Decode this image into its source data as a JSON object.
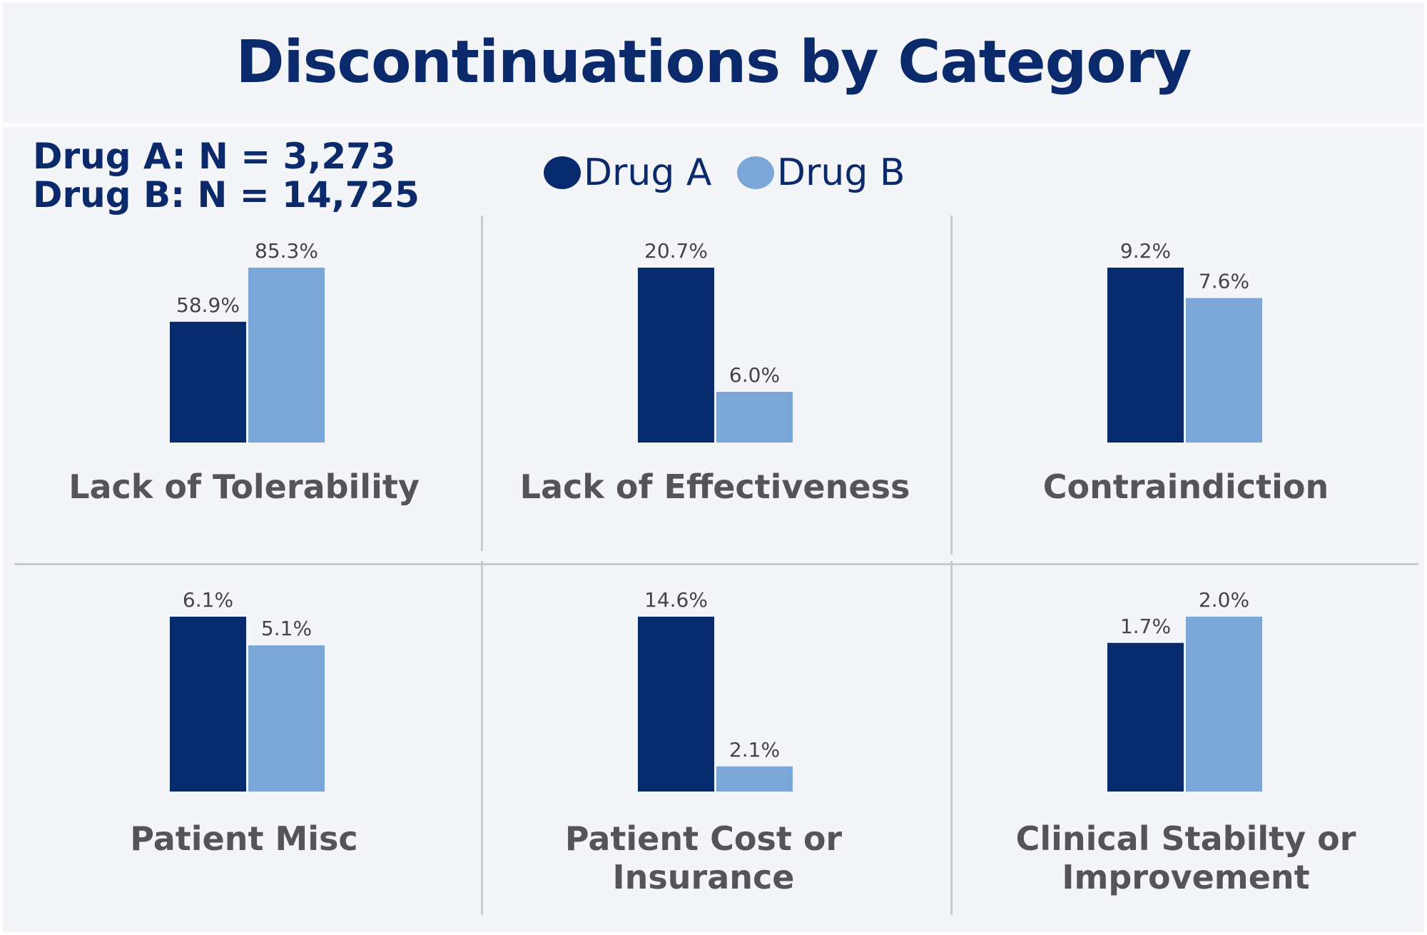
{
  "chart_data": {
    "type": "bar",
    "title": "Discontinuations by Category",
    "sample_sizes": [
      "Drug A: N = 3,273",
      "Drug B: N = 14,725"
    ],
    "series": [
      {
        "name": "Drug A",
        "color": "#062a6b"
      },
      {
        "name": "Drug B",
        "color": "#7ba7d8"
      }
    ],
    "panels": [
      {
        "category": [
          "Lack of Tolerability"
        ],
        "values": [
          58.9,
          85.3
        ],
        "labels": [
          "58.9%",
          "85.3%"
        ]
      },
      {
        "category": [
          "Lack of Effectiveness"
        ],
        "values": [
          20.7,
          6.0
        ],
        "labels": [
          "20.7%",
          "6.0%"
        ]
      },
      {
        "category": [
          "Contraindiction"
        ],
        "values": [
          9.2,
          7.6
        ],
        "labels": [
          "9.2%",
          "7.6%"
        ]
      },
      {
        "category": [
          "Patient Misc"
        ],
        "values": [
          6.1,
          5.1
        ],
        "labels": [
          "6.1%",
          "5.1%"
        ]
      },
      {
        "category": [
          "Patient Cost or",
          "Insurance"
        ],
        "values": [
          14.6,
          2.1
        ],
        "labels": [
          "14.6%",
          "2.1%"
        ]
      },
      {
        "category": [
          "Clinical Stabilty or",
          "Improvement"
        ],
        "values": [
          1.7,
          2.0
        ],
        "labels": [
          "1.7%",
          "2.0%"
        ]
      }
    ],
    "unit": "%",
    "legend_position": "top-center",
    "grid": false
  }
}
